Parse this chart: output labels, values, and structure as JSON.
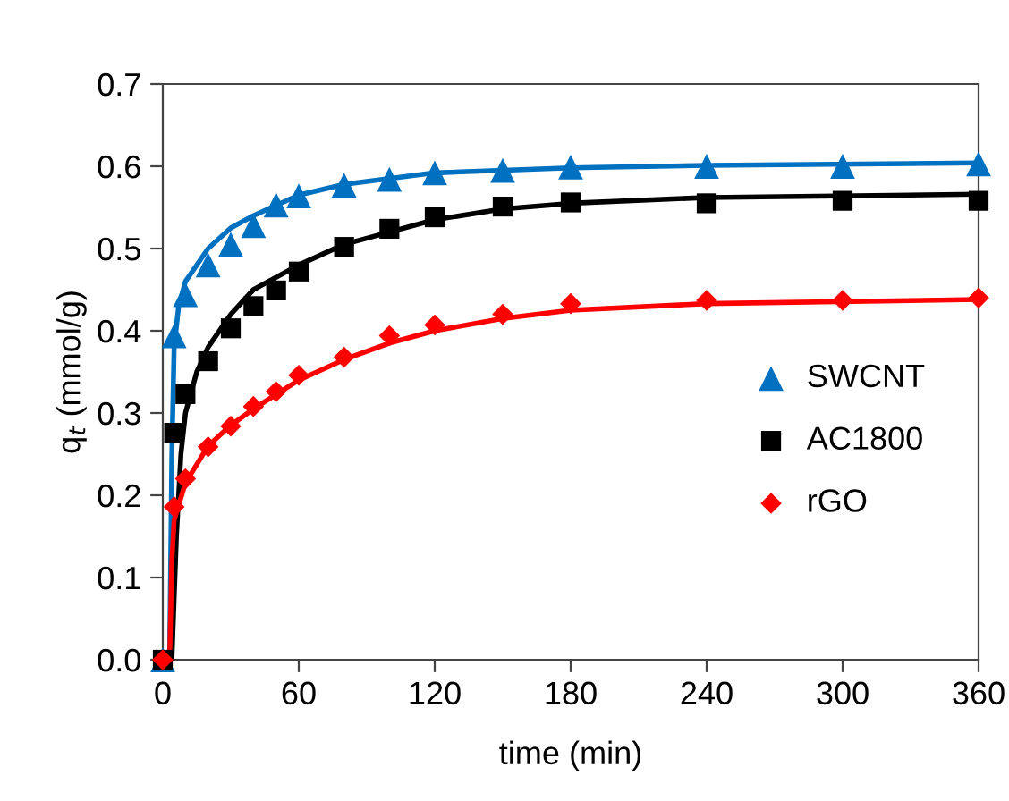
{
  "chart_data": {
    "type": "scatter",
    "xlabel": "time (min)",
    "ylabel": "q$_{t}$ (mmol/g)",
    "xlim": [
      0,
      360
    ],
    "xticks": [
      0,
      60,
      120,
      180,
      240,
      300,
      360
    ],
    "ylim": [
      0,
      0.7
    ],
    "yticks": [
      {
        "value": 0,
        "label": "0.0"
      },
      0.1,
      0.2,
      0.3,
      0.4,
      0.5,
      0.6,
      0.7
    ],
    "grid": false,
    "legend": "right",
    "x": [
      0,
      5,
      10,
      20,
      30,
      40,
      50,
      60,
      80,
      100,
      120,
      150,
      180,
      240,
      300,
      360
    ],
    "series": [
      {
        "name": "SWCNT",
        "color": "#0070c0",
        "marker": "triangle",
        "values": [
          0,
          0.394,
          0.444,
          0.48,
          0.505,
          0.528,
          0.553,
          0.564,
          0.577,
          0.584,
          0.592,
          0.595,
          0.599,
          0.6,
          0.6,
          0.603
        ]
      },
      {
        "name": "AC1800",
        "color": "#000000",
        "marker": "square",
        "values": [
          0,
          0.276,
          0.323,
          0.363,
          0.403,
          0.43,
          0.449,
          0.472,
          0.502,
          0.524,
          0.538,
          0.551,
          0.556,
          0.555,
          0.558,
          0.558
        ]
      },
      {
        "name": "rGO",
        "color": "#ff0000",
        "marker": "diamond",
        "values": [
          0,
          0.186,
          0.22,
          0.259,
          0.284,
          0.308,
          0.326,
          0.346,
          0.368,
          0.394,
          0.407,
          0.42,
          0.433,
          0.437,
          0.437,
          0.44
        ]
      },
      {
        "type": "line",
        "color": "#0070c0",
        "marker": "none",
        "x": [
          3,
          4,
          5,
          7,
          10,
          20,
          30,
          40,
          60,
          80,
          120,
          180,
          240,
          360
        ],
        "values": [
          0,
          0.25,
          0.38,
          0.43,
          0.46,
          0.5,
          0.525,
          0.54,
          0.565,
          0.578,
          0.592,
          0.598,
          0.601,
          0.604
        ]
      },
      {
        "type": "line",
        "color": "#000000",
        "marker": "none",
        "x": [
          4,
          6,
          8,
          10,
          15,
          20,
          30,
          40,
          60,
          80,
          100,
          120,
          150,
          180,
          240,
          360
        ],
        "values": [
          0,
          0.15,
          0.25,
          0.3,
          0.35,
          0.38,
          0.42,
          0.45,
          0.48,
          0.505,
          0.52,
          0.535,
          0.548,
          0.555,
          0.562,
          0.566
        ]
      },
      {
        "type": "line",
        "color": "#ff0000",
        "marker": "none",
        "x": [
          3,
          4,
          5,
          10,
          20,
          30,
          40,
          60,
          80,
          100,
          120,
          150,
          180,
          240,
          360
        ],
        "values": [
          0,
          0.12,
          0.17,
          0.215,
          0.26,
          0.285,
          0.305,
          0.34,
          0.365,
          0.385,
          0.4,
          0.415,
          0.425,
          0.433,
          0.438
        ]
      }
    ]
  }
}
